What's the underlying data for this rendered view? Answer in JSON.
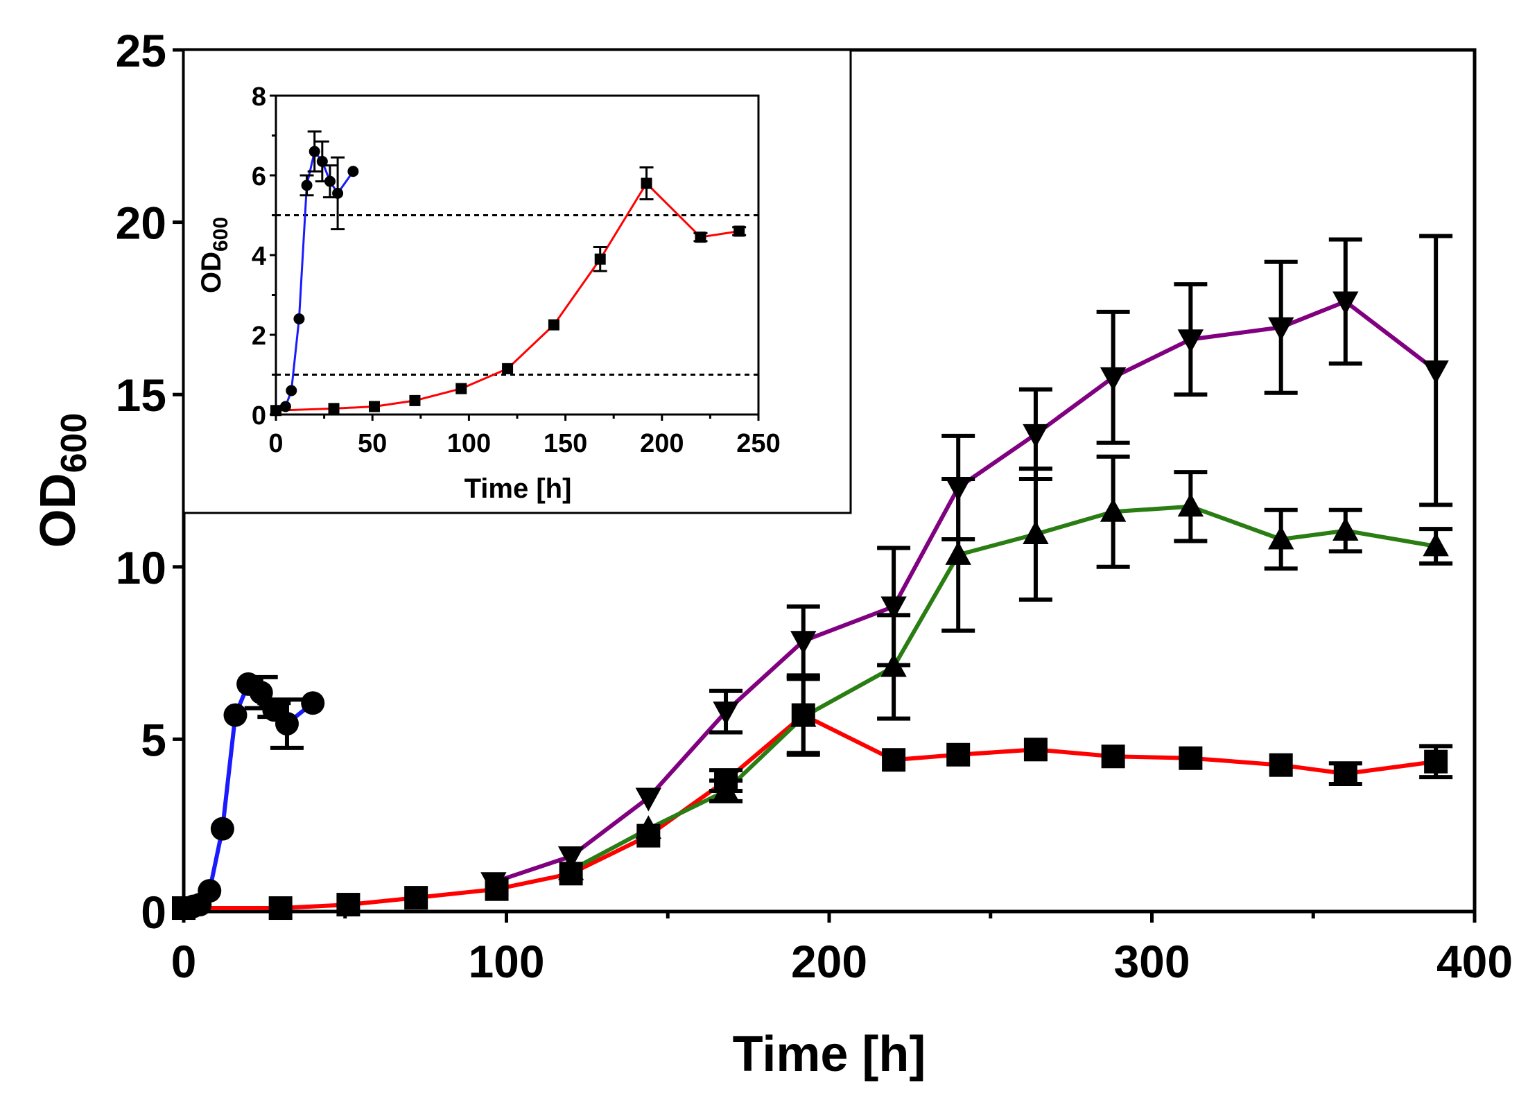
{
  "colors": {
    "blue": "#1a1aff",
    "red": "#ff0000",
    "green": "#2a7d12",
    "purple": "#800080",
    "marker": "#000000"
  },
  "chart_data": [
    {
      "type": "line",
      "xlabel": "Time [h]",
      "ylabel": {
        "main": "OD",
        "sub": "600"
      },
      "xlim": [
        0,
        400
      ],
      "ylim": [
        0,
        25
      ],
      "xticks": [
        "0",
        "100",
        "200",
        "300",
        "400"
      ],
      "yticks": [
        "0",
        "5",
        "10",
        "15",
        "20",
        "25"
      ],
      "grid": false,
      "legend": "none",
      "series": [
        {
          "color": "blue",
          "marker": "circle",
          "x": [
            0,
            3,
            5,
            8,
            12,
            16,
            20,
            24,
            28,
            32,
            40
          ],
          "y": [
            0.1,
            0.15,
            0.2,
            0.6,
            2.4,
            5.7,
            6.6,
            6.35,
            5.85,
            5.45,
            6.05
          ],
          "err": [
            0,
            0,
            0,
            0,
            0,
            0,
            0,
            0.45,
            0.2,
            0.7,
            0
          ]
        },
        {
          "color": "red",
          "marker": "square",
          "x": [
            0,
            30,
            51,
            72,
            97,
            120,
            144,
            168,
            192,
            220,
            240,
            264,
            288,
            312,
            340,
            360,
            388
          ],
          "y": [
            0.1,
            0.1,
            0.2,
            0.4,
            0.65,
            1.1,
            2.2,
            3.8,
            5.7,
            4.4,
            4.55,
            4.7,
            4.5,
            4.45,
            4.25,
            4.0,
            4.35
          ],
          "err": [
            0,
            0,
            0,
            0,
            0,
            0,
            0,
            0.3,
            1.1,
            0,
            0,
            0,
            0,
            0,
            0,
            0.3,
            0.45
          ]
        },
        {
          "color": "green",
          "marker": "triangle-up",
          "x": [
            120,
            144,
            168,
            192,
            220,
            240,
            264,
            288,
            312,
            340,
            360,
            388
          ],
          "y": [
            1.2,
            2.4,
            3.5,
            5.65,
            7.1,
            10.35,
            10.95,
            11.6,
            11.75,
            10.8,
            11.05,
            10.6
          ],
          "err": [
            0,
            0,
            0.3,
            1.1,
            1.5,
            2.2,
            1.9,
            1.6,
            1.0,
            0.85,
            0.6,
            0.5
          ]
        },
        {
          "color": "purple",
          "marker": "triangle-down",
          "x": [
            96,
            120,
            144,
            168,
            192,
            220,
            240,
            264,
            288,
            312,
            340,
            360,
            388
          ],
          "y": [
            0.85,
            1.6,
            3.3,
            5.8,
            7.85,
            8.85,
            12.3,
            13.85,
            15.5,
            16.6,
            16.95,
            17.7,
            15.7
          ],
          "err": [
            0,
            0,
            0,
            0.6,
            1.0,
            1.7,
            1.5,
            1.3,
            1.9,
            1.6,
            1.9,
            1.8,
            3.9
          ]
        }
      ]
    },
    {
      "type": "line",
      "xlabel": "Time [h]",
      "ylabel": {
        "main": "OD",
        "sub": "600"
      },
      "xlim": [
        0,
        250
      ],
      "ylim": [
        0,
        8
      ],
      "xticks": [
        "0",
        "50",
        "100",
        "150",
        "200",
        "250"
      ],
      "yticks": [
        "0",
        "2",
        "4",
        "6",
        "8"
      ],
      "reference_lines": [
        1.0,
        5.0
      ],
      "grid": false,
      "legend": "none",
      "series": [
        {
          "color": "blue",
          "marker": "circle",
          "x": [
            0,
            5,
            8,
            12,
            16,
            20,
            24,
            28,
            32,
            40
          ],
          "y": [
            0.1,
            0.2,
            0.6,
            2.4,
            5.75,
            6.6,
            6.35,
            5.85,
            5.55,
            6.1
          ],
          "err": [
            0,
            0,
            0,
            0,
            0.25,
            0.5,
            0.5,
            0.4,
            0.9,
            0
          ]
        },
        {
          "color": "red",
          "marker": "square",
          "x": [
            0,
            30,
            51,
            72,
            96,
            120,
            144,
            168,
            192,
            220,
            240
          ],
          "y": [
            0.1,
            0.15,
            0.2,
            0.35,
            0.65,
            1.15,
            2.25,
            3.9,
            5.8,
            4.45,
            4.6
          ],
          "err": [
            0,
            0,
            0,
            0,
            0,
            0,
            0,
            0.3,
            0.4,
            0.1,
            0.1
          ]
        }
      ]
    }
  ]
}
